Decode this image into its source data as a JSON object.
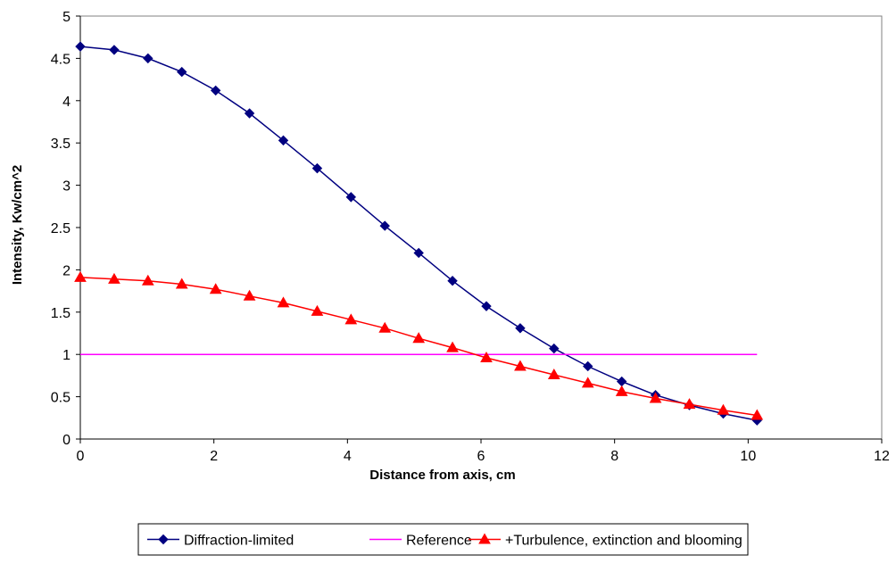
{
  "chart_data": {
    "type": "line",
    "title": "",
    "xlabel": "Distance from axis, cm",
    "ylabel": "Intensity, Kw/cm^2",
    "xlim": [
      0,
      12
    ],
    "ylim": [
      0,
      5
    ],
    "xticks": [
      0,
      2,
      4,
      6,
      8,
      10,
      12
    ],
    "yticks": [
      0,
      0.5,
      1,
      1.5,
      2,
      2.5,
      3,
      3.5,
      4,
      4.5,
      5
    ],
    "grid": false,
    "legend_position": "bottom",
    "series": [
      {
        "name": "Diffraction-limited",
        "color": "#000080",
        "marker": "diamond",
        "x": [
          0,
          0.507,
          1.013,
          1.52,
          2.027,
          2.533,
          3.04,
          3.547,
          4.053,
          4.56,
          5.067,
          5.573,
          6.08,
          6.587,
          7.093,
          7.6,
          8.107,
          8.613,
          9.12,
          9.627,
          10.133
        ],
        "y": [
          4.64,
          4.6,
          4.5,
          4.34,
          4.12,
          3.85,
          3.53,
          3.2,
          2.86,
          2.52,
          2.2,
          1.87,
          1.57,
          1.31,
          1.07,
          0.86,
          0.68,
          0.52,
          0.4,
          0.3,
          0.22
        ]
      },
      {
        "name": "Reference",
        "color": "#ff00ff",
        "marker": "none",
        "x": [
          0,
          10.133
        ],
        "y": [
          1,
          1
        ]
      },
      {
        "name": "+Turbulence, extinction and blooming",
        "color": "#ff0000",
        "marker": "triangle",
        "x": [
          0,
          0.507,
          1.013,
          1.52,
          2.027,
          2.533,
          3.04,
          3.547,
          4.053,
          4.56,
          5.067,
          5.573,
          6.08,
          6.587,
          7.093,
          7.6,
          8.107,
          8.613,
          9.12,
          9.627,
          10.133
        ],
        "y": [
          1.91,
          1.89,
          1.87,
          1.83,
          1.77,
          1.69,
          1.61,
          1.51,
          1.41,
          1.31,
          1.19,
          1.08,
          0.96,
          0.86,
          0.76,
          0.66,
          0.56,
          0.48,
          0.41,
          0.34,
          0.28
        ]
      }
    ]
  }
}
